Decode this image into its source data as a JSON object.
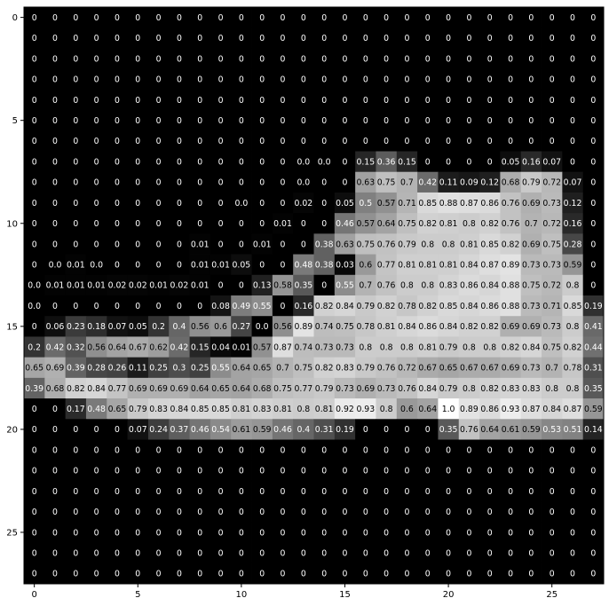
{
  "chart_data": {
    "type": "heatmap",
    "colormap": "gray",
    "title": "",
    "xlabel": "",
    "ylabel": "",
    "x_ticks": [
      "0",
      "5",
      "10",
      "15",
      "20",
      "25"
    ],
    "y_ticks": [
      "0",
      "5",
      "10",
      "15",
      "20",
      "25"
    ],
    "value_range": [
      0,
      1
    ],
    "n_rows": 28,
    "n_cols": 28,
    "cells": [
      [
        "0",
        "0",
        "0",
        "0",
        "0",
        "0",
        "0",
        "0",
        "0",
        "0",
        "0",
        "0",
        "0",
        "0",
        "0",
        "0",
        "0",
        "0",
        "0",
        "0",
        "0",
        "0",
        "0",
        "0",
        "0",
        "0",
        "0",
        "0"
      ],
      [
        "0",
        "0",
        "0",
        "0",
        "0",
        "0",
        "0",
        "0",
        "0",
        "0",
        "0",
        "0",
        "0",
        "0",
        "0",
        "0",
        "0",
        "0",
        "0",
        "0",
        "0",
        "0",
        "0",
        "0",
        "0",
        "0",
        "0",
        "0"
      ],
      [
        "0",
        "0",
        "0",
        "0",
        "0",
        "0",
        "0",
        "0",
        "0",
        "0",
        "0",
        "0",
        "0",
        "0",
        "0",
        "0",
        "0",
        "0",
        "0",
        "0",
        "0",
        "0",
        "0",
        "0",
        "0",
        "0",
        "0",
        "0"
      ],
      [
        "0",
        "0",
        "0",
        "0",
        "0",
        "0",
        "0",
        "0",
        "0",
        "0",
        "0",
        "0",
        "0",
        "0",
        "0",
        "0",
        "0",
        "0",
        "0",
        "0",
        "0",
        "0",
        "0",
        "0",
        "0",
        "0",
        "0",
        "0"
      ],
      [
        "0",
        "0",
        "0",
        "0",
        "0",
        "0",
        "0",
        "0",
        "0",
        "0",
        "0",
        "0",
        "0",
        "0",
        "0",
        "0",
        "0",
        "0",
        "0",
        "0",
        "0",
        "0",
        "0",
        "0",
        "0",
        "0",
        "0",
        "0"
      ],
      [
        "0",
        "0",
        "0",
        "0",
        "0",
        "0",
        "0",
        "0",
        "0",
        "0",
        "0",
        "0",
        "0",
        "0",
        "0",
        "0",
        "0",
        "0",
        "0",
        "0",
        "0",
        "0",
        "0",
        "0",
        "0",
        "0",
        "0",
        "0"
      ],
      [
        "0",
        "0",
        "0",
        "0",
        "0",
        "0",
        "0",
        "0",
        "0",
        "0",
        "0",
        "0",
        "0",
        "0",
        "0",
        "0",
        "0",
        "0",
        "0",
        "0",
        "0",
        "0",
        "0",
        "0",
        "0",
        "0",
        "0",
        "0"
      ],
      [
        "0",
        "0",
        "0",
        "0",
        "0",
        "0",
        "0",
        "0",
        "0",
        "0",
        "0",
        "0",
        "0",
        "0.0",
        "0.0",
        "0",
        "0.15",
        "0.36",
        "0.15",
        "0",
        "0",
        "0",
        "0",
        "0.05",
        "0.16",
        "0.07",
        "0",
        "0"
      ],
      [
        "0",
        "0",
        "0",
        "0",
        "0",
        "0",
        "0",
        "0",
        "0",
        "0",
        "0",
        "0",
        "0",
        "0.0",
        "0",
        "0",
        "0.63",
        "0.75",
        "0.7",
        "0.42",
        "0.11",
        "0.09",
        "0.12",
        "0.68",
        "0.79",
        "0.72",
        "0.07",
        "0"
      ],
      [
        "0",
        "0",
        "0",
        "0",
        "0",
        "0",
        "0",
        "0",
        "0",
        "0",
        "0.0",
        "0",
        "0",
        "0.02",
        "0",
        "0.05",
        "0.5",
        "0.57",
        "0.71",
        "0.85",
        "0.88",
        "0.87",
        "0.86",
        "0.76",
        "0.69",
        "0.73",
        "0.12",
        "0"
      ],
      [
        "0",
        "0",
        "0",
        "0",
        "0",
        "0",
        "0",
        "0",
        "0",
        "0",
        "0",
        "0",
        "0.01",
        "0",
        "0",
        "0.46",
        "0.57",
        "0.64",
        "0.75",
        "0.82",
        "0.81",
        "0.8",
        "0.82",
        "0.76",
        "0.7",
        "0.72",
        "0.16",
        "0"
      ],
      [
        "0",
        "0",
        "0",
        "0",
        "0",
        "0",
        "0",
        "0",
        "0.01",
        "0",
        "0",
        "0.01",
        "0",
        "0",
        "0.38",
        "0.63",
        "0.75",
        "0.76",
        "0.79",
        "0.8",
        "0.8",
        "0.81",
        "0.85",
        "0.82",
        "0.69",
        "0.75",
        "0.28",
        "0"
      ],
      [
        "0",
        "0.0",
        "0.01",
        "0.0",
        "0",
        "0",
        "0",
        "0",
        "0.01",
        "0.01",
        "0.05",
        "0",
        "0",
        "0.48",
        "0.38",
        "0.03",
        "0.6",
        "0.77",
        "0.81",
        "0.81",
        "0.81",
        "0.84",
        "0.87",
        "0.89",
        "0.73",
        "0.73",
        "0.59",
        "0"
      ],
      [
        "0.0",
        "0.01",
        "0.01",
        "0.01",
        "0.02",
        "0.02",
        "0.01",
        "0.02",
        "0.01",
        "0",
        "0",
        "0.13",
        "0.58",
        "0.35",
        "0",
        "0.55",
        "0.7",
        "0.76",
        "0.8",
        "0.8",
        "0.83",
        "0.86",
        "0.84",
        "0.88",
        "0.75",
        "0.72",
        "0.8",
        "0"
      ],
      [
        "0.0",
        "0",
        "0",
        "0",
        "0",
        "0",
        "0",
        "0",
        "0",
        "0.08",
        "0.49",
        "0.55",
        "0",
        "0.16",
        "0.82",
        "0.84",
        "0.79",
        "0.82",
        "0.78",
        "0.82",
        "0.85",
        "0.84",
        "0.86",
        "0.88",
        "0.73",
        "0.71",
        "0.85",
        "0.19"
      ],
      [
        "0",
        "0.06",
        "0.23",
        "0.18",
        "0.07",
        "0.05",
        "0.2",
        "0.4",
        "0.56",
        "0.6",
        "0.27",
        "0.0",
        "0.56",
        "0.89",
        "0.74",
        "0.75",
        "0.78",
        "0.81",
        "0.84",
        "0.86",
        "0.84",
        "0.82",
        "0.82",
        "0.69",
        "0.69",
        "0.73",
        "0.8",
        "0.41"
      ],
      [
        "0.2",
        "0.42",
        "0.32",
        "0.56",
        "0.64",
        "0.67",
        "0.62",
        "0.42",
        "0.15",
        "0.04",
        "0.01",
        "0.57",
        "0.87",
        "0.74",
        "0.73",
        "0.73",
        "0.8",
        "0.8",
        "0.8",
        "0.81",
        "0.79",
        "0.8",
        "0.8",
        "0.82",
        "0.84",
        "0.75",
        "0.82",
        "0.44"
      ],
      [
        "0.65",
        "0.69",
        "0.39",
        "0.28",
        "0.26",
        "0.11",
        "0.25",
        "0.3",
        "0.25",
        "0.55",
        "0.64",
        "0.65",
        "0.7",
        "0.75",
        "0.82",
        "0.83",
        "0.79",
        "0.76",
        "0.72",
        "0.67",
        "0.65",
        "0.67",
        "0.67",
        "0.69",
        "0.73",
        "0.7",
        "0.78",
        "0.31"
      ],
      [
        "0.39",
        "0.68",
        "0.82",
        "0.84",
        "0.77",
        "0.69",
        "0.69",
        "0.69",
        "0.64",
        "0.65",
        "0.64",
        "0.68",
        "0.75",
        "0.77",
        "0.79",
        "0.73",
        "0.69",
        "0.73",
        "0.76",
        "0.84",
        "0.79",
        "0.8",
        "0.82",
        "0.83",
        "0.83",
        "0.8",
        "0.8",
        "0.35"
      ],
      [
        "0",
        "0",
        "0.17",
        "0.48",
        "0.65",
        "0.79",
        "0.83",
        "0.84",
        "0.85",
        "0.85",
        "0.81",
        "0.83",
        "0.81",
        "0.8",
        "0.81",
        "0.92",
        "0.93",
        "0.8",
        "0.6",
        "0.64",
        "1.0",
        "0.89",
        "0.86",
        "0.93",
        "0.87",
        "0.84",
        "0.87",
        "0.59"
      ],
      [
        "0",
        "0",
        "0",
        "0",
        "0",
        "0.07",
        "0.24",
        "0.37",
        "0.46",
        "0.54",
        "0.61",
        "0.59",
        "0.46",
        "0.4",
        "0.31",
        "0.19",
        "0",
        "0",
        "0",
        "0",
        "0.35",
        "0.76",
        "0.64",
        "0.61",
        "0.59",
        "0.53",
        "0.51",
        "0.14"
      ],
      [
        "0",
        "0",
        "0",
        "0",
        "0",
        "0",
        "0",
        "0",
        "0",
        "0",
        "0",
        "0",
        "0",
        "0",
        "0",
        "0",
        "0",
        "0",
        "0",
        "0",
        "0",
        "0",
        "0",
        "0",
        "0",
        "0",
        "0",
        "0"
      ],
      [
        "0",
        "0",
        "0",
        "0",
        "0",
        "0",
        "0",
        "0",
        "0",
        "0",
        "0",
        "0",
        "0",
        "0",
        "0",
        "0",
        "0",
        "0",
        "0",
        "0",
        "0",
        "0",
        "0",
        "0",
        "0",
        "0",
        "0",
        "0"
      ],
      [
        "0",
        "0",
        "0",
        "0",
        "0",
        "0",
        "0",
        "0",
        "0",
        "0",
        "0",
        "0",
        "0",
        "0",
        "0",
        "0",
        "0",
        "0",
        "0",
        "0",
        "0",
        "0",
        "0",
        "0",
        "0",
        "0",
        "0",
        "0"
      ],
      [
        "0",
        "0",
        "0",
        "0",
        "0",
        "0",
        "0",
        "0",
        "0",
        "0",
        "0",
        "0",
        "0",
        "0",
        "0",
        "0",
        "0",
        "0",
        "0",
        "0",
        "0",
        "0",
        "0",
        "0",
        "0",
        "0",
        "0",
        "0"
      ],
      [
        "0",
        "0",
        "0",
        "0",
        "0",
        "0",
        "0",
        "0",
        "0",
        "0",
        "0",
        "0",
        "0",
        "0",
        "0",
        "0",
        "0",
        "0",
        "0",
        "0",
        "0",
        "0",
        "0",
        "0",
        "0",
        "0",
        "0",
        "0"
      ],
      [
        "0",
        "0",
        "0",
        "0",
        "0",
        "0",
        "0",
        "0",
        "0",
        "0",
        "0",
        "0",
        "0",
        "0",
        "0",
        "0",
        "0",
        "0",
        "0",
        "0",
        "0",
        "0",
        "0",
        "0",
        "0",
        "0",
        "0",
        "0"
      ],
      [
        "0",
        "0",
        "0",
        "0",
        "0",
        "0",
        "0",
        "0",
        "0",
        "0",
        "0",
        "0",
        "0",
        "0",
        "0",
        "0",
        "0",
        "0",
        "0",
        "0",
        "0",
        "0",
        "0",
        "0",
        "0",
        "0",
        "0",
        "0"
      ]
    ]
  }
}
